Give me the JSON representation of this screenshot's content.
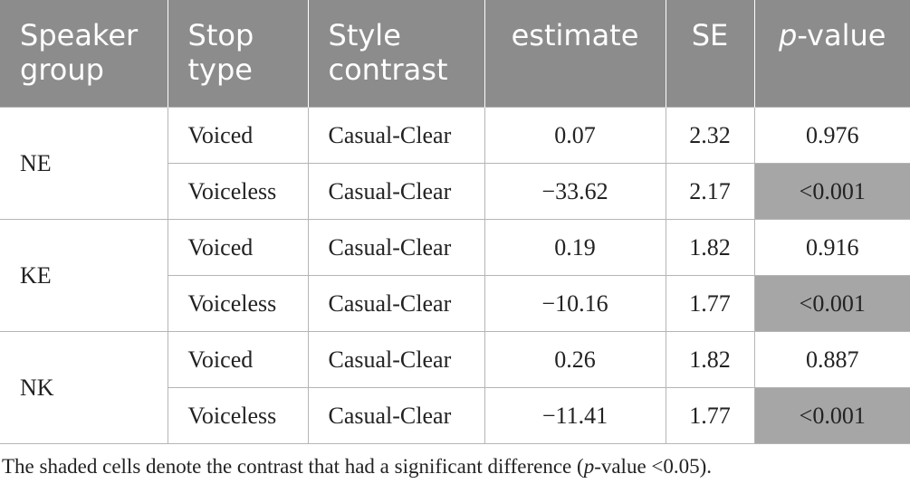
{
  "table": {
    "headers": [
      {
        "text": "Speaker group"
      },
      {
        "text": "Stop type"
      },
      {
        "text": "Style contrast"
      },
      {
        "text": "estimate"
      },
      {
        "text": "SE"
      },
      {
        "italic": "p",
        "text": "-value"
      }
    ],
    "groups": [
      {
        "speaker": "NE",
        "rows": [
          {
            "cells": [
              "Voiced",
              "Casual-Clear",
              "0.07",
              "2.32",
              "0.976"
            ],
            "shaded": false
          },
          {
            "cells": [
              "Voiceless",
              "Casual-Clear",
              "−33.62",
              "2.17",
              "<0.001"
            ],
            "shaded": true
          }
        ]
      },
      {
        "speaker": "KE",
        "rows": [
          {
            "cells": [
              "Voiced",
              "Casual-Clear",
              "0.19",
              "1.82",
              "0.916"
            ],
            "shaded": false
          },
          {
            "cells": [
              "Voiceless",
              "Casual-Clear",
              "−10.16",
              "1.77",
              "<0.001"
            ],
            "shaded": true
          }
        ]
      },
      {
        "speaker": "NK",
        "rows": [
          {
            "cells": [
              "Voiced",
              "Casual-Clear",
              "0.26",
              "1.82",
              "0.887"
            ],
            "shaded": false
          },
          {
            "cells": [
              "Voiceless",
              "Casual-Clear",
              "−11.41",
              "1.77",
              "<0.001"
            ],
            "shaded": true
          }
        ]
      }
    ]
  },
  "footnote": [
    "The shaded cells denote the contrast that had a significant difference (",
    "p",
    "-value <0.05)."
  ]
}
